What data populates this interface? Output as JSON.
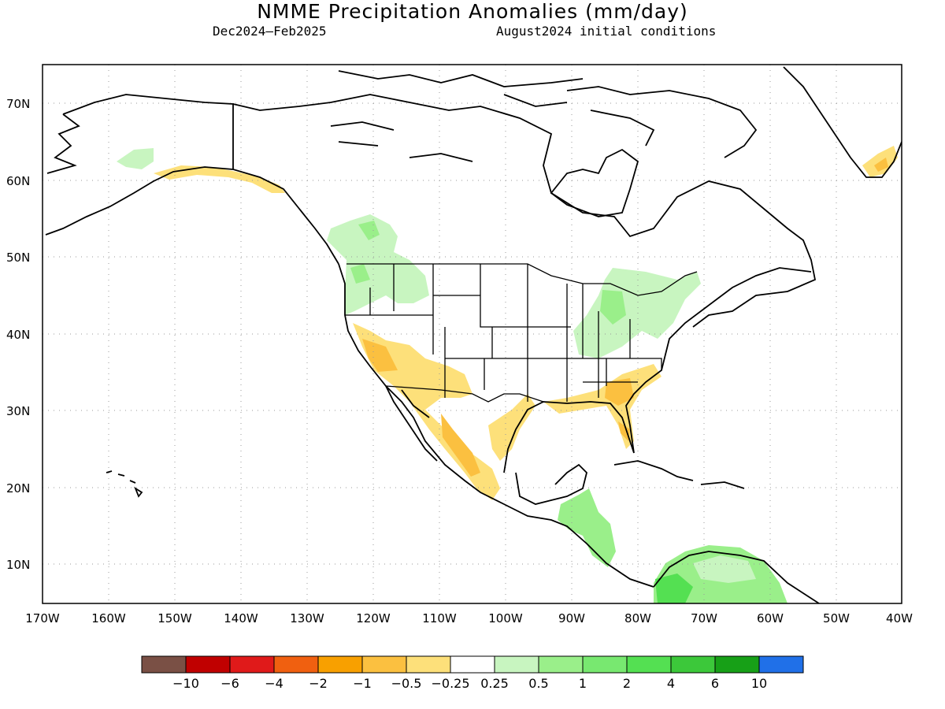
{
  "title": "NMME Precipitation Anomalies (mm/day)",
  "subtitle_left": "Dec2024–Feb2025",
  "subtitle_right": "August2024 initial conditions",
  "map": {
    "lon_range": [
      -170,
      -40
    ],
    "lat_range": [
      5,
      75
    ],
    "lat_ticks": [
      "70N",
      "60N",
      "50N",
      "40N",
      "30N",
      "20N",
      "10N"
    ],
    "lon_ticks": [
      "170W",
      "160W",
      "150W",
      "140W",
      "130W",
      "120W",
      "110W",
      "100W",
      "90W",
      "80W",
      "70W",
      "60W",
      "50W",
      "40W"
    ],
    "grid": true,
    "regions": [
      {
        "name": "wet-pacific-northwest",
        "class": "0.25-0.5"
      },
      {
        "name": "wet-great-lakes-ohio-valley",
        "class": "0.25-0.5"
      },
      {
        "name": "wet-central-america",
        "class": "0.5-1"
      },
      {
        "name": "wet-northern-south-america",
        "class": "1-2"
      },
      {
        "name": "dry-southwest-us",
        "class": "-0.5--0.25"
      },
      {
        "name": "dry-gulf-coast",
        "class": "-1--0.5"
      },
      {
        "name": "dry-southern-alaska-coast",
        "class": "-0.5--0.25"
      },
      {
        "name": "dry-greenland-tip",
        "class": "-0.5--0.25"
      }
    ]
  },
  "colorbar": {
    "colors": [
      "#7a5045",
      "#c00000",
      "#e01a1a",
      "#f06010",
      "#f8a000",
      "#fbc040",
      "#fde07a",
      "#ffffff",
      "#c8f5c0",
      "#9aef8a",
      "#78e870",
      "#54e052",
      "#3cc83a",
      "#17a017",
      "#2070e8"
    ],
    "labels": [
      "−10",
      "−6",
      "−4",
      "−2",
      "−1",
      "−0.5",
      "−0.25",
      "0.25",
      "0.5",
      "1",
      "2",
      "4",
      "6",
      "10"
    ]
  }
}
